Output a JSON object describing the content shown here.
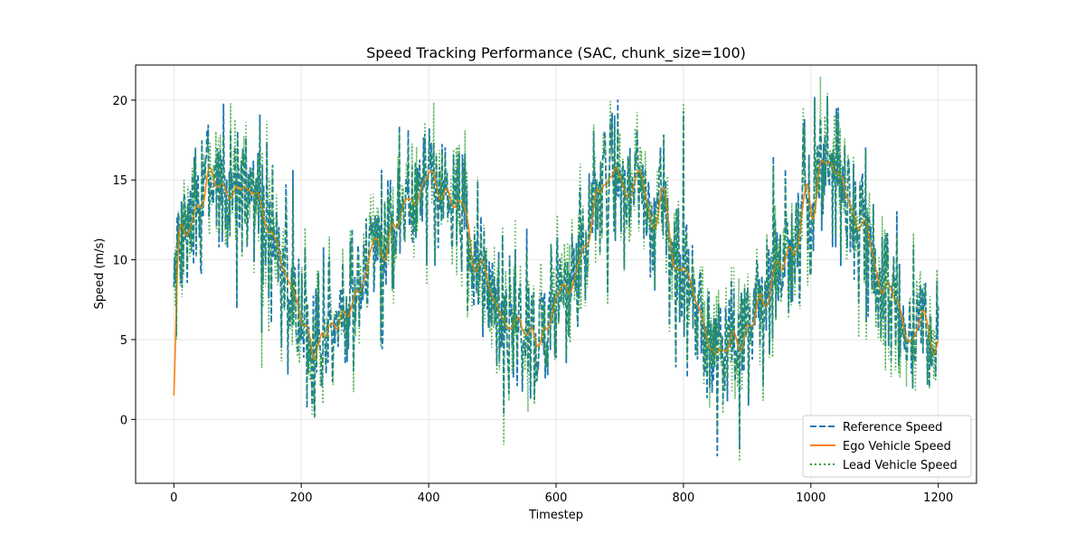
{
  "chart_data": {
    "type": "line",
    "title": "Speed Tracking Performance (SAC, chunk_size=100)",
    "xlabel": "Timestep",
    "ylabel": "Speed (m/s)",
    "xlim": [
      -60,
      1260
    ],
    "ylim": [
      -4,
      22.2
    ],
    "xticks": [
      0,
      200,
      400,
      600,
      800,
      1000,
      1200
    ],
    "yticks": [
      0,
      5,
      10,
      15,
      20
    ],
    "grid": true,
    "legend_position": "lower-right",
    "series": [
      {
        "name": "Reference Speed",
        "color": "#1f77b4",
        "style": "dashed"
      },
      {
        "name": "Ego Vehicle Speed",
        "color": "#ff7f0e",
        "style": "solid"
      },
      {
        "name": "Lead Vehicle Speed",
        "color": "#2ca02c",
        "style": "dotted"
      }
    ],
    "underlying_trend": {
      "x": [
        0,
        10,
        20,
        40,
        60,
        80,
        100,
        120,
        140,
        160,
        180,
        200,
        220,
        240,
        260,
        280,
        300,
        320,
        340,
        360,
        380,
        400,
        420,
        440,
        460,
        480,
        500,
        520,
        540,
        560,
        580,
        600,
        620,
        640,
        660,
        680,
        700,
        720,
        740,
        760,
        780,
        800,
        820,
        840,
        860,
        880,
        900,
        920,
        940,
        960,
        980,
        1000,
        1020,
        1040,
        1060,
        1080,
        1100,
        1120,
        1140,
        1160,
        1180,
        1200
      ],
      "y": [
        9.0,
        11.0,
        12.0,
        14.0,
        14.8,
        15.0,
        14.8,
        14.0,
        13.0,
        11.0,
        8.0,
        6.0,
        4.8,
        4.5,
        5.5,
        7.5,
        9.0,
        10.5,
        12.0,
        13.5,
        14.5,
        15.0,
        14.5,
        13.0,
        11.0,
        9.0,
        7.5,
        6.5,
        6.0,
        5.5,
        5.5,
        6.0,
        8.0,
        11.0,
        13.5,
        15.0,
        15.0,
        14.5,
        13.5,
        12.5,
        11.0,
        9.0,
        7.0,
        5.5,
        4.8,
        5.0,
        6.0,
        7.5,
        9.0,
        10.5,
        12.5,
        14.5,
        15.5,
        15.5,
        14.0,
        12.0,
        9.5,
        7.5,
        6.0,
        5.0,
        4.5,
        4.0
      ]
    },
    "noise_amplitude": 2.6
  }
}
